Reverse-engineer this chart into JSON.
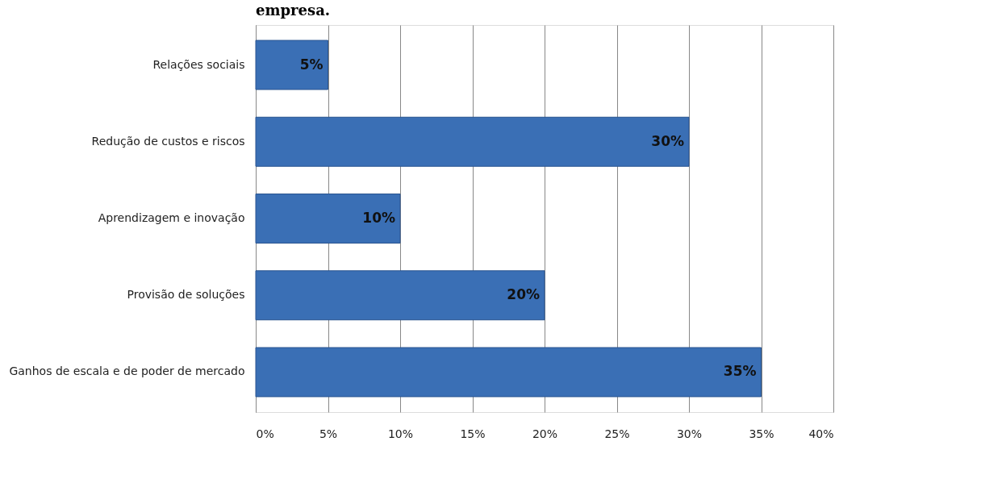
{
  "chart_data": {
    "type": "bar",
    "orientation": "horizontal",
    "title": "empresa.",
    "categories": [
      "Relações sociais",
      "Redução de custos e riscos",
      "Aprendizagem e inovação",
      "Provisão de soluções",
      "Ganhos de escala e de poder de mercado"
    ],
    "values": [
      5,
      30,
      10,
      20,
      35
    ],
    "color": "#3a6fb5",
    "value_labels": [
      "5%",
      "30%",
      "10%",
      "20%",
      "35%"
    ],
    "xlim": [
      0,
      40
    ],
    "xticks": [
      {
        "value": 0,
        "label": "0%"
      },
      {
        "value": 5,
        "label": "5%"
      },
      {
        "value": 10,
        "label": "10%"
      },
      {
        "value": 15,
        "label": "15%"
      },
      {
        "value": 20,
        "label": "20%"
      },
      {
        "value": 25,
        "label": "25%"
      },
      {
        "value": 30,
        "label": "30%"
      },
      {
        "value": 35,
        "label": "35%"
      },
      {
        "value": 40,
        "label": "40%"
      }
    ],
    "grid": "x"
  }
}
